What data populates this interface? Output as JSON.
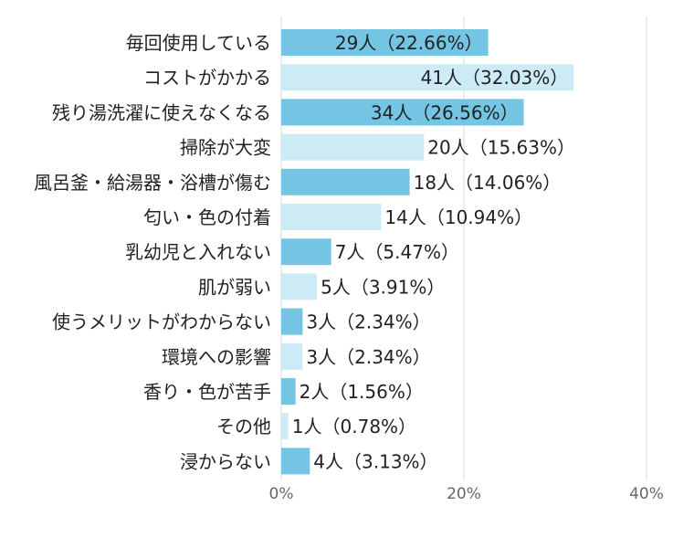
{
  "chart_data": {
    "type": "bar",
    "orientation": "horizontal",
    "title": "",
    "xlabel": "",
    "ylabel": "",
    "xlim": [
      0,
      40
    ],
    "x_ticks": [
      "0%",
      "20%",
      "40%"
    ],
    "grid": true,
    "legend": "none",
    "colors": {
      "dark_bar": "#74c4e4",
      "light_bar": "#cdebf6",
      "grid": "#d9d9d9",
      "text": "#222222",
      "tick_text": "#666666"
    },
    "categories": [
      "毎回使用している",
      "コストがかかる",
      "残り湯洗濯に使えなくなる",
      "掃除が大変",
      "風呂釜・給湯器・浴槽が傷む",
      "匂い・色の付着",
      "乳幼児と入れない",
      "肌が弱い",
      "使うメリットがわからない",
      "環境への影響",
      "香り・色が苦手",
      "その他",
      "浸からない"
    ],
    "values": [
      22.66,
      32.03,
      26.56,
      15.63,
      14.06,
      10.94,
      5.47,
      3.91,
      2.34,
      2.34,
      1.56,
      0.78,
      3.13
    ],
    "counts": [
      29,
      41,
      34,
      20,
      18,
      14,
      7,
      5,
      3,
      3,
      2,
      1,
      4
    ],
    "data_labels": [
      "29人（22.66%）",
      "41人（32.03%）",
      "34人（26.56%）",
      "20人（15.63%）",
      "18人（14.06%）",
      "14人（10.94%）",
      "7人（5.47%）",
      "5人（3.91%）",
      "3人（2.34%）",
      "3人（2.34%）",
      "2人（1.56%）",
      "1人（0.78%）",
      "4人（3.13%）"
    ]
  }
}
